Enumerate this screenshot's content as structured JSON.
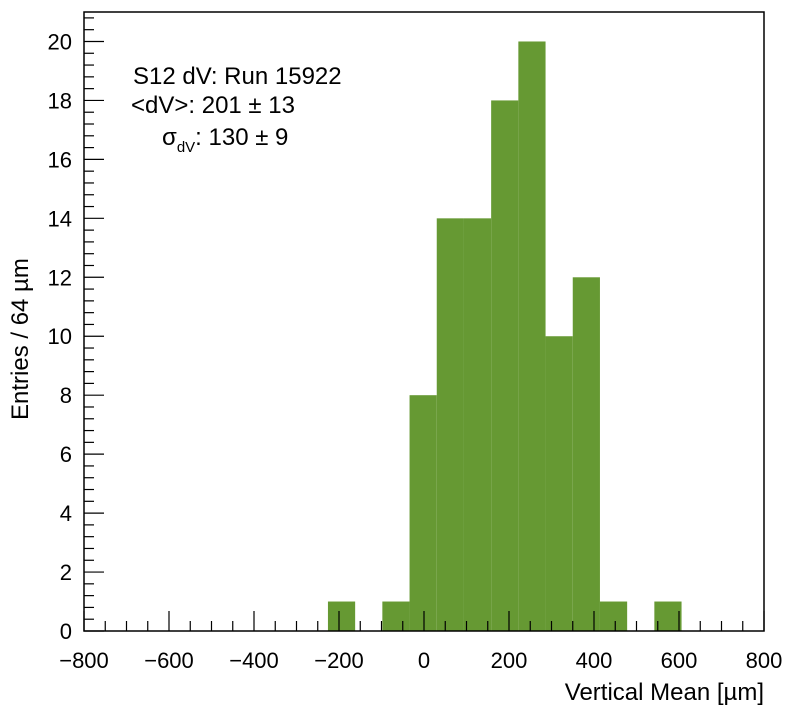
{
  "chart_data": {
    "type": "bar",
    "histogram": true,
    "bin_width": 64,
    "bins": [
      {
        "x_low": -226,
        "x_high": -162,
        "count": 1
      },
      {
        "x_low": -98,
        "x_high": -34,
        "count": 1
      },
      {
        "x_low": -34,
        "x_high": 30,
        "count": 8
      },
      {
        "x_low": 30,
        "x_high": 94,
        "count": 14
      },
      {
        "x_low": 94,
        "x_high": 158,
        "count": 14
      },
      {
        "x_low": 158,
        "x_high": 222,
        "count": 18
      },
      {
        "x_low": 222,
        "x_high": 286,
        "count": 20
      },
      {
        "x_low": 286,
        "x_high": 350,
        "count": 10
      },
      {
        "x_low": 350,
        "x_high": 414,
        "count": 12
      },
      {
        "x_low": 414,
        "x_high": 478,
        "count": 1
      },
      {
        "x_low": 542,
        "x_high": 606,
        "count": 1
      }
    ],
    "xlim": [
      -800,
      800
    ],
    "ylim": [
      0,
      21
    ],
    "x_ticks": [
      -800,
      -600,
      -400,
      -200,
      0,
      200,
      400,
      600,
      800
    ],
    "x_tick_labels": [
      "−800",
      "−600",
      "−400",
      "−200",
      "0",
      "200",
      "400",
      "600",
      "800"
    ],
    "y_ticks": [
      0,
      2,
      4,
      6,
      8,
      10,
      12,
      14,
      16,
      18,
      20
    ],
    "y_tick_labels": [
      "0",
      "2",
      "4",
      "6",
      "8",
      "10",
      "12",
      "14",
      "16",
      "18",
      "20"
    ],
    "xlabel": "Vertical Mean [µm]",
    "ylabel": "Entries / 64 µm",
    "fill_color": "#669933",
    "grid": false,
    "legend": "none",
    "annotations": {
      "line1": "S12 dV: Run 15922",
      "line2": "<dV>: 201 ± 13",
      "line3_symbol": "σ",
      "line3_subscript": "dV",
      "line3_value": ": 130 ± 9"
    }
  }
}
